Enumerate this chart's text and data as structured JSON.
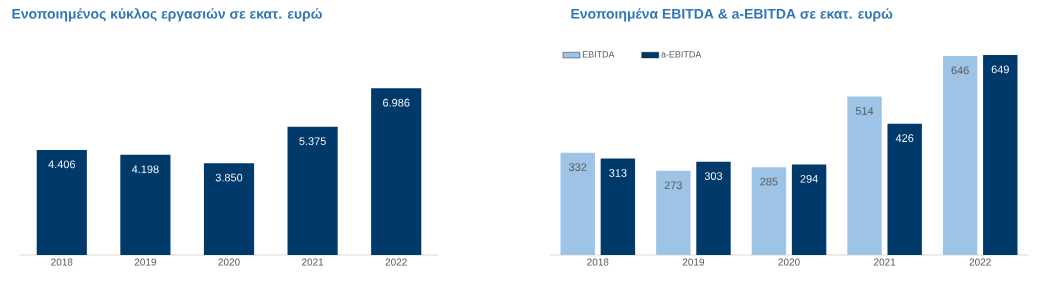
{
  "chart_data": [
    {
      "type": "bar",
      "title": "Ενοποιημένος κύκλος εργασιών σε εκατ. ευρώ",
      "categories": [
        "2018",
        "2019",
        "2020",
        "2021",
        "2022"
      ],
      "values": [
        4406,
        4198,
        3850,
        5375,
        6986
      ],
      "value_labels": [
        "4.406",
        "4.198",
        "3.850",
        "5.375",
        "6.986"
      ],
      "color": "#003a6b"
    },
    {
      "type": "bar",
      "title": "Ενοποιημένα EBITDA & a-EBITDA σε εκατ. ευρώ",
      "categories": [
        "2018",
        "2019",
        "2020",
        "2021",
        "2022"
      ],
      "series": [
        {
          "name": "EBITDA",
          "color": "#9dc3e6",
          "values": [
            332,
            273,
            285,
            514,
            646
          ]
        },
        {
          "name": "a-EBITDA",
          "color": "#003a6b",
          "values": [
            313,
            303,
            294,
            426,
            649
          ]
        }
      ],
      "data_labels": true,
      "legend": "top left"
    }
  ]
}
